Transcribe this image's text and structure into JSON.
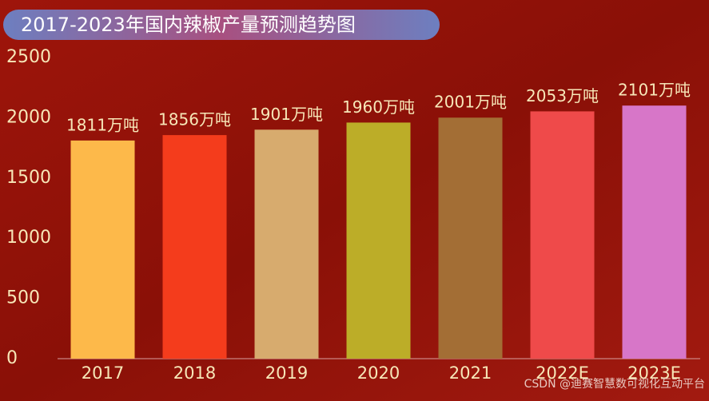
{
  "chart_data": {
    "type": "bar",
    "title": "2017-2023年国内辣椒产量预测趋势图",
    "categories": [
      "2017",
      "2018",
      "2019",
      "2020",
      "2021",
      "2022E",
      "2023E"
    ],
    "values": [
      1811,
      1856,
      1901,
      1960,
      2001,
      2053,
      2101
    ],
    "value_labels": [
      "1811万吨",
      "1856万吨",
      "1901万吨",
      "1960万吨",
      "2001万吨",
      "2053万吨",
      "2101万吨"
    ],
    "colors": [
      "#fdb94a",
      "#f43c1c",
      "#d7ab6e",
      "#bcad28",
      "#a36e35",
      "#ef4a4a",
      "#d776c8"
    ],
    "ylim": [
      0,
      2500
    ],
    "yticks": [
      0,
      500,
      1000,
      1500,
      2000,
      2500
    ],
    "grid": false
  },
  "watermark": "CSDN @迪赛智慧数可视化互动平台"
}
